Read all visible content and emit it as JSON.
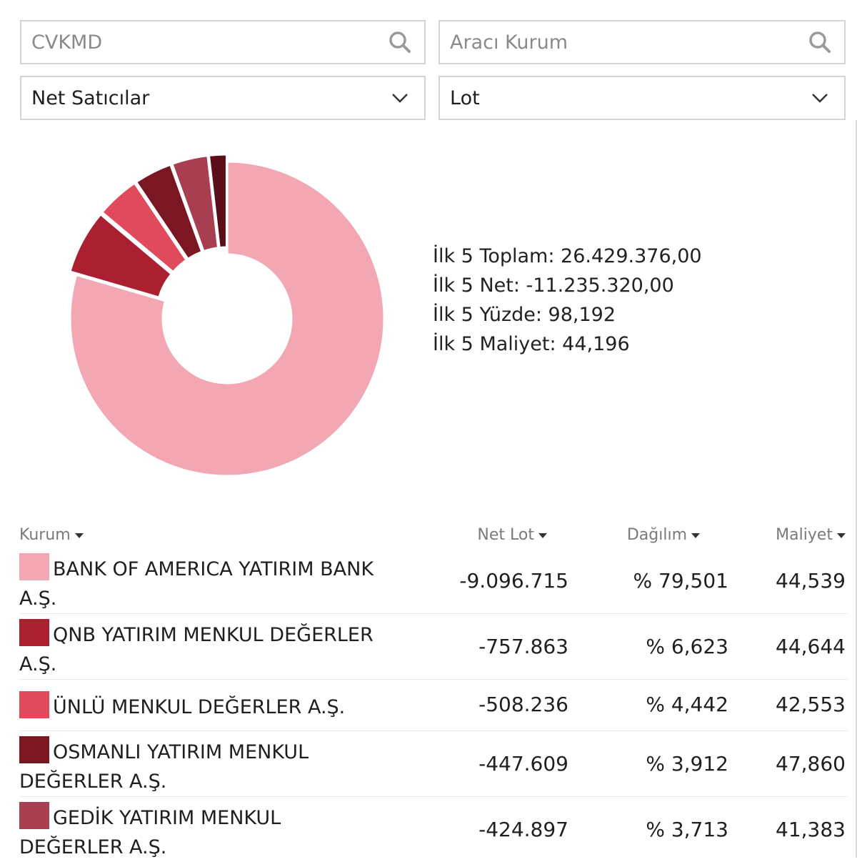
{
  "filters": {
    "symbol_placeholder": "CVKMD",
    "broker_placeholder": "Aracı Kurum",
    "side_value": "Net Satıcılar",
    "unit_value": "Lot"
  },
  "summary": {
    "total": "İlk 5 Toplam: 26.429.376,00",
    "net": "İlk 5 Net: -11.235.320,00",
    "percent": "İlk 5 Yüzde: 98,192",
    "cost": "İlk 5 Maliyet: 44,196"
  },
  "table": {
    "headers": {
      "kurum": "Kurum",
      "net_lot": "Net Lot",
      "dagilim": "Dağılım",
      "maliyet": "Maliyet"
    },
    "rows": [
      {
        "name": "BANK OF AMERICA YATIRIM BANK A.Ş.",
        "net_lot": "-9.096.715",
        "dagilim": "% 79,501",
        "maliyet": "44,539",
        "color": "#f2a7b2"
      },
      {
        "name": "QNB YATIRIM MENKUL DEĞERLER A.Ş.",
        "net_lot": "-757.863",
        "dagilim": "% 6,623",
        "maliyet": "44,644",
        "color": "#ab2030"
      },
      {
        "name": "ÜNLÜ MENKUL DEĞERLER A.Ş.",
        "net_lot": "-508.236",
        "dagilim": "% 4,442",
        "maliyet": "42,553",
        "color": "#e04a5c"
      },
      {
        "name": "OSMANLI YATIRIM MENKUL DEĞERLER A.Ş.",
        "net_lot": "-447.609",
        "dagilim": "% 3,912",
        "maliyet": "47,860",
        "color": "#7a1722"
      },
      {
        "name": "GEDİK YATIRIM MENKUL DEĞERLER A.Ş.",
        "net_lot": "-424.897",
        "dagilim": "% 3,713",
        "maliyet": "41,383",
        "color": "#a83f50"
      }
    ]
  },
  "chart_data": {
    "type": "pie",
    "values": [
      79.501,
      6.623,
      4.442,
      3.912,
      3.713,
      1.808
    ],
    "colors": [
      "#f2a7b2",
      "#ab2030",
      "#e04a5c",
      "#7a1722",
      "#a83f50",
      "#5c0e18"
    ]
  }
}
